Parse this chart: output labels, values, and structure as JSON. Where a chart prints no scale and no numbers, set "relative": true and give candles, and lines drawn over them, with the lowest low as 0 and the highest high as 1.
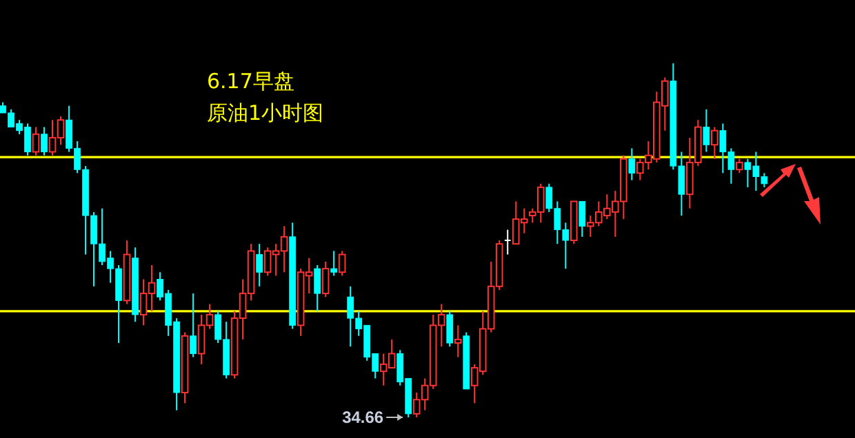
{
  "chart_data": {
    "type": "candlestick",
    "title": "6.17早盘",
    "subtitle": "原油1小时图",
    "relative": true,
    "categories": [
      null,
      null,
      null,
      null,
      null,
      null,
      null,
      null,
      null,
      null,
      null,
      null,
      null,
      null,
      null,
      null,
      null,
      null,
      null,
      null,
      null,
      null,
      null,
      null,
      null,
      null,
      null,
      null,
      null,
      null,
      null,
      null,
      null,
      null,
      null,
      null,
      null,
      null,
      null,
      null,
      null,
      null,
      null,
      null,
      null,
      null,
      null,
      null,
      null,
      null,
      null,
      null,
      null,
      null,
      null,
      null,
      null,
      null,
      null,
      null,
      null,
      null,
      null,
      null,
      null,
      null,
      null,
      null,
      null,
      null,
      null,
      null,
      null,
      null,
      null,
      null,
      null,
      null,
      null,
      null,
      null,
      null,
      null,
      null,
      null,
      null,
      null,
      null,
      null,
      null,
      null,
      null,
      null
    ],
    "ohlc": [
      [
        0.88,
        0.89,
        0.86,
        0.86
      ],
      [
        0.86,
        0.87,
        0.82,
        0.82
      ],
      [
        0.83,
        0.84,
        0.8,
        0.81
      ],
      [
        0.82,
        0.83,
        0.74,
        0.75
      ],
      [
        0.75,
        0.82,
        0.74,
        0.8
      ],
      [
        0.8,
        0.82,
        0.74,
        0.75
      ],
      [
        0.75,
        0.84,
        0.74,
        0.79
      ],
      [
        0.79,
        0.85,
        0.77,
        0.84
      ],
      [
        0.84,
        0.88,
        0.75,
        0.76
      ],
      [
        0.76,
        0.78,
        0.69,
        0.7
      ],
      [
        0.7,
        0.71,
        0.46,
        0.57
      ],
      [
        0.57,
        0.58,
        0.37,
        0.49
      ],
      [
        0.49,
        0.59,
        0.43,
        0.44
      ],
      [
        0.45,
        0.47,
        0.38,
        0.42
      ],
      [
        0.42,
        0.43,
        0.21,
        0.33
      ],
      [
        0.33,
        0.5,
        0.32,
        0.46
      ],
      [
        0.45,
        0.48,
        0.27,
        0.29
      ],
      [
        0.29,
        0.39,
        0.26,
        0.35
      ],
      [
        0.35,
        0.43,
        0.3,
        0.38
      ],
      [
        0.39,
        0.41,
        0.33,
        0.34
      ],
      [
        0.35,
        0.36,
        0.23,
        0.26
      ],
      [
        0.27,
        0.28,
        0.02,
        0.07
      ],
      [
        0.07,
        0.24,
        0.04,
        0.23
      ],
      [
        0.23,
        0.35,
        0.17,
        0.18
      ],
      [
        0.18,
        0.29,
        0.15,
        0.26
      ],
      [
        0.26,
        0.32,
        0.25,
        0.29
      ],
      [
        0.29,
        0.3,
        0.21,
        0.22
      ],
      [
        0.22,
        0.27,
        0.11,
        0.12
      ],
      [
        0.12,
        0.3,
        0.11,
        0.28
      ],
      [
        0.28,
        0.39,
        0.22,
        0.35
      ],
      [
        0.35,
        0.49,
        0.33,
        0.47
      ],
      [
        0.46,
        0.49,
        0.37,
        0.41
      ],
      [
        0.41,
        0.48,
        0.4,
        0.47
      ],
      [
        0.46,
        0.49,
        0.4,
        0.47
      ],
      [
        0.47,
        0.54,
        0.41,
        0.51
      ],
      [
        0.51,
        0.55,
        0.25,
        0.26
      ],
      [
        0.26,
        0.42,
        0.23,
        0.41
      ],
      [
        0.4,
        0.45,
        0.35,
        0.41
      ],
      [
        0.42,
        0.43,
        0.3,
        0.35
      ],
      [
        0.35,
        0.44,
        0.34,
        0.42
      ],
      [
        0.42,
        0.47,
        0.4,
        0.41
      ],
      [
        0.41,
        0.47,
        0.4,
        0.46
      ],
      [
        0.34,
        0.37,
        0.2,
        0.28
      ],
      [
        0.28,
        0.3,
        0.23,
        0.25
      ],
      [
        0.26,
        0.26,
        0.16,
        0.17
      ],
      [
        0.18,
        0.18,
        0.11,
        0.13
      ],
      [
        0.13,
        0.18,
        0.09,
        0.15
      ],
      [
        0.14,
        0.22,
        0.14,
        0.18
      ],
      [
        0.18,
        0.19,
        0.09,
        0.1
      ],
      [
        0.11,
        0.11,
        0,
        0.01
      ],
      [
        0.01,
        0.07,
        0,
        0.05
      ],
      [
        0.05,
        0.11,
        0.02,
        0.09
      ],
      [
        0.09,
        0.29,
        0.08,
        0.26
      ],
      [
        0.26,
        0.32,
        0.2,
        0.29
      ],
      [
        0.29,
        0.3,
        0.2,
        0.21
      ],
      [
        0.21,
        0.26,
        0.17,
        0.22
      ],
      [
        0.23,
        0.24,
        0.08,
        0.08
      ],
      [
        0.09,
        0.15,
        0.04,
        0.14
      ],
      [
        0.13,
        0.3,
        0.12,
        0.25
      ],
      [
        0.25,
        0.44,
        0.24,
        0.37
      ],
      [
        0.37,
        0.5,
        0.36,
        0.49
      ],
      [
        0.5,
        0.53,
        0.46,
        0.5
      ],
      [
        0.49,
        0.61,
        0.49,
        0.56
      ],
      [
        0.55,
        0.59,
        0.52,
        0.56
      ],
      [
        0.57,
        0.59,
        0.55,
        0.58
      ],
      [
        0.58,
        0.66,
        0.55,
        0.65
      ],
      [
        0.65,
        0.66,
        0.58,
        0.59
      ],
      [
        0.59,
        0.61,
        0.49,
        0.53
      ],
      [
        0.53,
        0.55,
        0.42,
        0.5
      ],
      [
        0.5,
        0.61,
        0.49,
        0.61
      ],
      [
        0.61,
        0.61,
        0.51,
        0.54
      ],
      [
        0.54,
        0.57,
        0.51,
        0.55
      ],
      [
        0.55,
        0.61,
        0.54,
        0.58
      ],
      [
        0.57,
        0.63,
        0.56,
        0.59
      ],
      [
        0.58,
        0.64,
        0.51,
        0.61
      ],
      [
        0.61,
        0.74,
        0.56,
        0.73
      ],
      [
        0.73,
        0.76,
        0.67,
        0.69
      ],
      [
        0.69,
        0.73,
        0.67,
        0.72
      ],
      [
        0.72,
        0.78,
        0.7,
        0.74
      ],
      [
        0.73,
        0.92,
        0.72,
        0.89
      ],
      [
        0.88,
        0.96,
        0.81,
        0.95
      ],
      [
        0.95,
        1,
        0.7,
        0.71
      ],
      [
        0.71,
        0.75,
        0.57,
        0.63
      ],
      [
        0.63,
        0.79,
        0.59,
        0.72
      ],
      [
        0.72,
        0.84,
        0.71,
        0.82
      ],
      [
        0.82,
        0.87,
        0.75,
        0.77
      ],
      [
        0.77,
        0.82,
        0.73,
        0.81
      ],
      [
        0.81,
        0.83,
        0.69,
        0.75
      ],
      [
        0.75,
        0.76,
        0.66,
        0.7
      ],
      [
        0.7,
        0.73,
        0.69,
        0.72
      ],
      [
        0.72,
        0.73,
        0.65,
        0.7
      ],
      [
        0.71,
        0.75,
        0.64,
        0.68
      ],
      [
        0.68,
        0.69,
        0.65,
        0.66
      ]
    ],
    "colors": [
      "#00ffff",
      "#00ffff",
      "#00ffff",
      "#00ffff",
      "#ff3232",
      "#00ffff",
      "#ff3232",
      "#ff3232",
      "#00ffff",
      "#00ffff",
      "#00ffff",
      "#00ffff",
      "#00ffff",
      "#00ffff",
      "#00ffff",
      "#ff3232",
      "#00ffff",
      "#ff3232",
      "#ff3232",
      "#00ffff",
      "#00ffff",
      "#00ffff",
      "#ff3232",
      "#00ffff",
      "#ff3232",
      "#ff3232",
      "#00ffff",
      "#00ffff",
      "#ff3232",
      "#ff3232",
      "#ff3232",
      "#00ffff",
      "#ff3232",
      "#ff3232",
      "#ff3232",
      "#00ffff",
      "#ff3232",
      "#ff3232",
      "#00ffff",
      "#ff3232",
      "#00ffff",
      "#ff3232",
      "#00ffff",
      "#00ffff",
      "#00ffff",
      "#00ffff",
      "#ff3232",
      "#ff3232",
      "#00ffff",
      "#00ffff",
      "#ff3232",
      "#ff3232",
      "#ff3232",
      "#ff3232",
      "#00ffff",
      "#ff3232",
      "#00ffff",
      "#ff3232",
      "#ff3232",
      "#ff3232",
      "#ff3232",
      "#ffffff",
      "#ff3232",
      "#ff3232",
      "#ff3232",
      "#ff3232",
      "#00ffff",
      "#00ffff",
      "#00ffff",
      "#ff3232",
      "#00ffff",
      "#ff3232",
      "#ff3232",
      "#ff3232",
      "#ff3232",
      "#ff3232",
      "#00ffff",
      "#ff3232",
      "#ff3232",
      "#ff3232",
      "#ff3232",
      "#00ffff",
      "#00ffff",
      "#ff3232",
      "#ff3232",
      "#00ffff",
      "#ff3232",
      "#00ffff",
      "#00ffff",
      "#ff3232",
      "#00ffff",
      "#00ffff",
      "#00ffff"
    ],
    "ref_lines": [
      {
        "axis": "y",
        "value": 0.735,
        "color": "#ffff00"
      },
      {
        "axis": "y",
        "value": 0.3,
        "color": "#ffff00"
      }
    ],
    "annotations": [
      "34.66"
    ]
  }
}
